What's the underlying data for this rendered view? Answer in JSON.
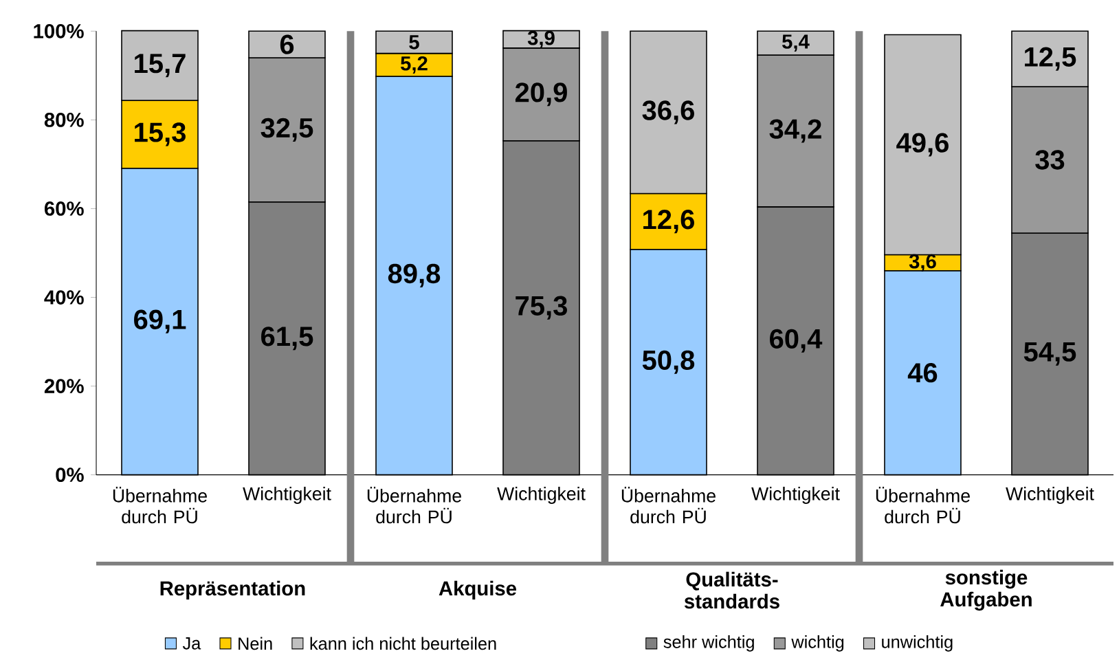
{
  "chart_data": {
    "type": "bar",
    "stacked": true,
    "categories": [
      "Übernahme durch PÜ",
      "Wichtigkeit",
      "Übernahme durch PÜ",
      "Wichtigkeit",
      "Übernahme durch PÜ",
      "Wichtigkeit",
      "Übernahme durch PÜ",
      "Wichtigkeit"
    ],
    "series": [
      {
        "name": "Ja",
        "color": "#99ccff",
        "values": [
          69.1,
          null,
          89.8,
          null,
          50.8,
          null,
          46,
          null
        ],
        "value_labels": [
          "69,1",
          null,
          "89,8",
          null,
          "50,8",
          null,
          "46",
          null
        ]
      },
      {
        "name": "Nein",
        "color": "#ffcc00",
        "values": [
          15.3,
          null,
          5.2,
          null,
          12.6,
          null,
          3.6,
          null
        ],
        "value_labels": [
          "15,3",
          null,
          "5,2",
          null,
          "12,6",
          null,
          "3,6",
          null
        ]
      },
      {
        "name": "kann ich nicht beurteilen",
        "color": "#c0c0c0",
        "values": [
          15.7,
          null,
          5,
          null,
          36.6,
          null,
          49.6,
          null
        ],
        "value_labels": [
          "15,7",
          null,
          "5",
          null,
          "36,6",
          null,
          "49,6",
          null
        ]
      },
      {
        "name": "sehr wichtig",
        "color": "#808080",
        "values": [
          null,
          61.5,
          null,
          75.3,
          null,
          60.4,
          null,
          54.5
        ],
        "value_labels": [
          null,
          "61,5",
          null,
          "75,3",
          null,
          "60,4",
          null,
          "54,5"
        ]
      },
      {
        "name": "wichtig",
        "color": "#999999",
        "values": [
          null,
          32.5,
          null,
          20.9,
          null,
          34.2,
          null,
          33
        ],
        "value_labels": [
          null,
          "32,5",
          null,
          "20,9",
          null,
          "34,2",
          null,
          "33"
        ]
      },
      {
        "name": "unwichtig",
        "color": "#c0c0c0",
        "values": [
          null,
          6,
          null,
          3.9,
          null,
          5.4,
          null,
          12.5
        ],
        "value_labels": [
          null,
          "6",
          null,
          "3,9",
          null,
          "5,4",
          null,
          "12,5"
        ]
      }
    ],
    "ylim": [
      0,
      100
    ],
    "yticks": [
      {
        "value": 0,
        "label": "0%"
      },
      {
        "value": 20,
        "label": "20%"
      },
      {
        "value": 40,
        "label": "40%"
      },
      {
        "value": 60,
        "label": "60%"
      },
      {
        "value": 80,
        "label": "80%"
      },
      {
        "value": 100,
        "label": "100%"
      }
    ],
    "annotations": [
      "Repräsentation",
      "Akquise",
      "Qualitäts-standards",
      "sonstige Aufgaben"
    ],
    "grid": false,
    "legend": "bottom"
  }
}
